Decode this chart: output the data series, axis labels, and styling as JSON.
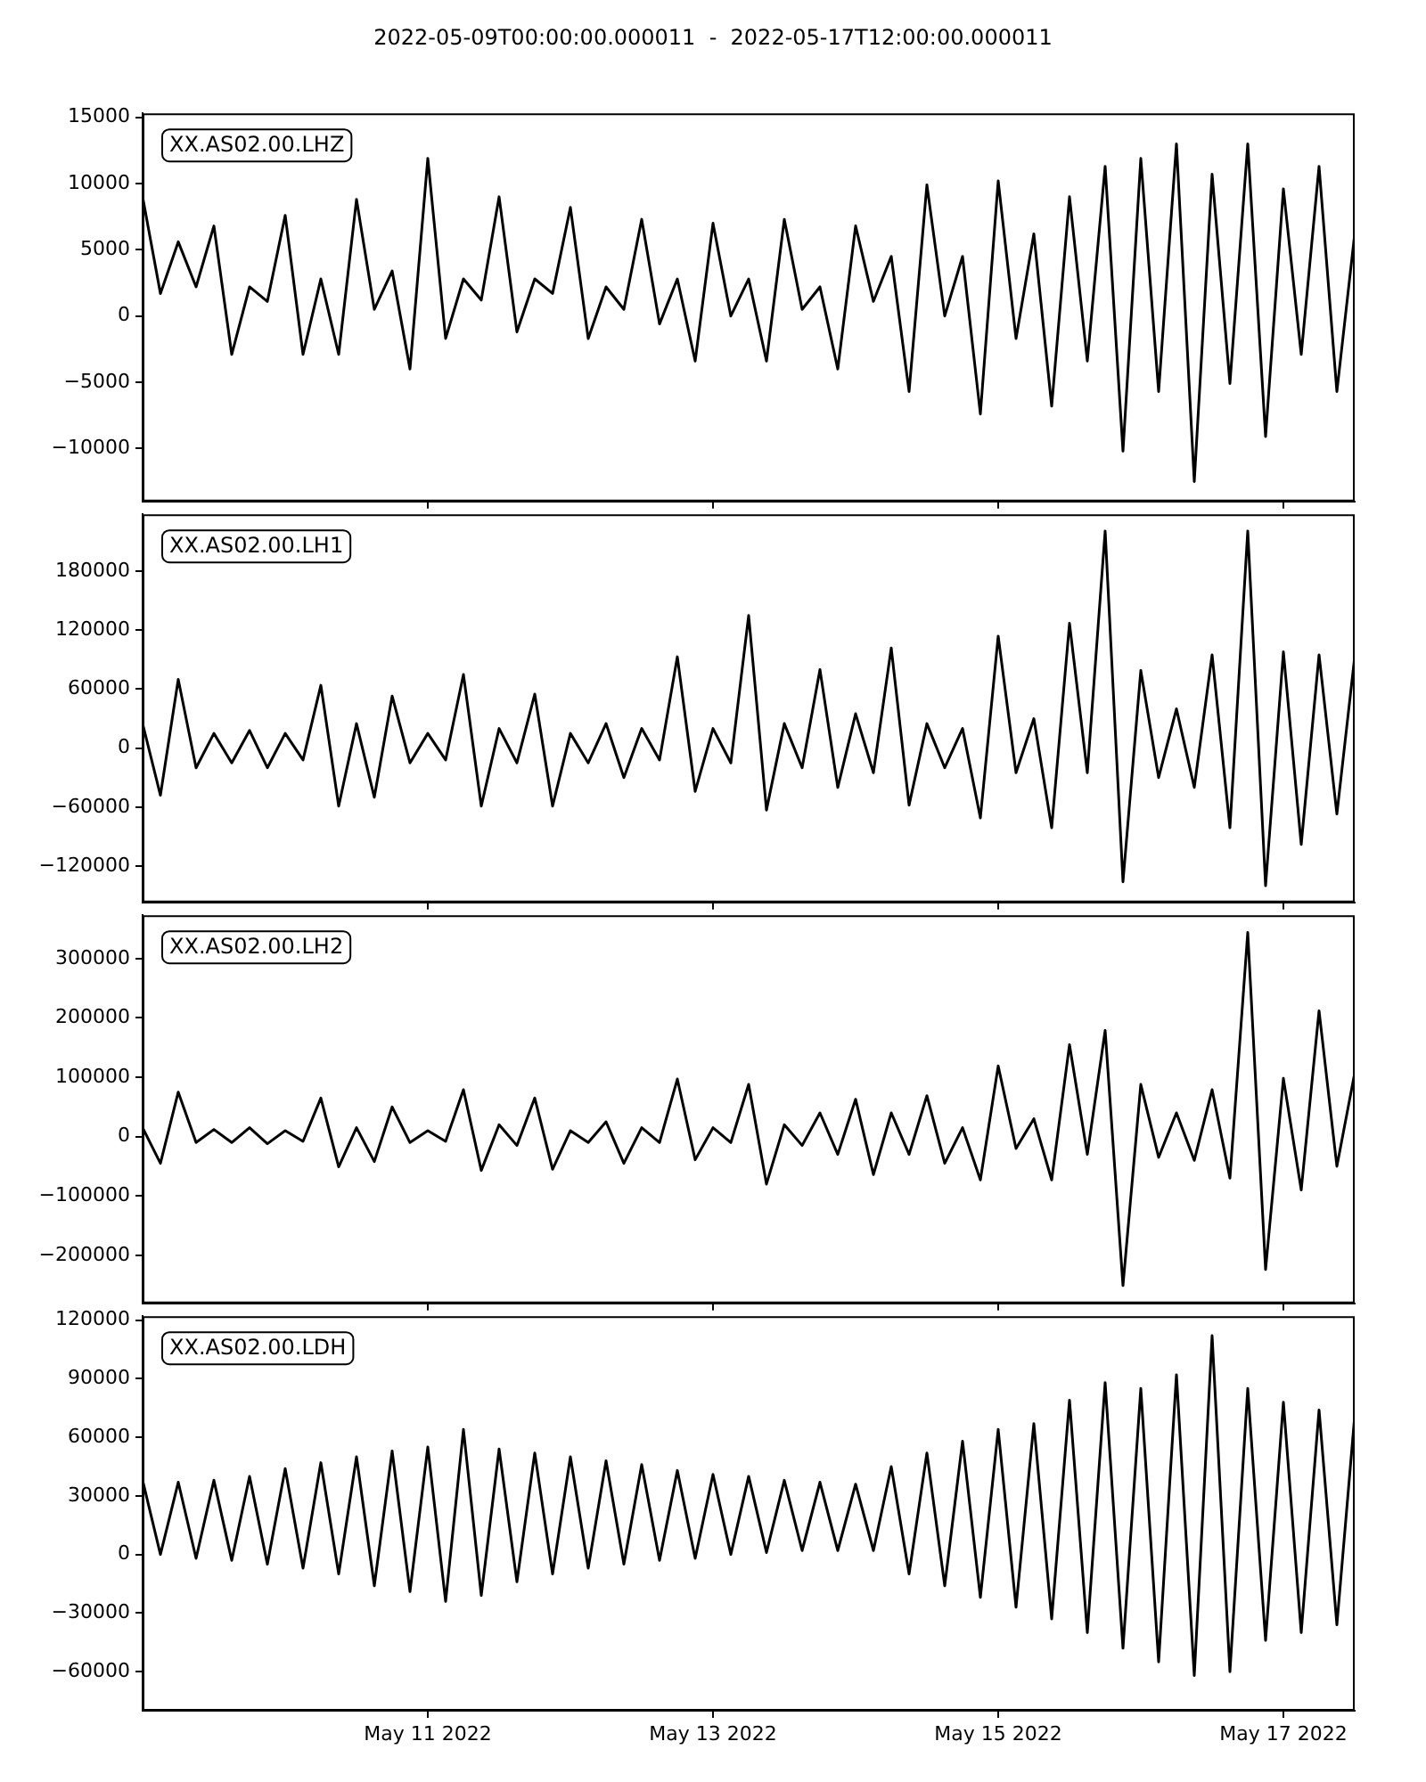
{
  "chart_data": [
    {
      "type": "line",
      "title": "2022-05-09T00:00:00.000011  -  2022-05-17T12:00:00.000011",
      "annotations": [
        "XX.AS02.00.LHZ"
      ],
      "color": "#000000",
      "tick_labels": "y",
      "grid": false,
      "legend": false,
      "xlim": [
        "2022-05-09T00:00",
        "2022-05-17T12:00"
      ],
      "xticks": [
        {
          "value": "2022-05-11",
          "label": null
        },
        {
          "value": "2022-05-13",
          "label": null
        },
        {
          "value": "2022-05-15",
          "label": null
        },
        {
          "value": "2022-05-17",
          "label": null
        }
      ],
      "ylim": [
        -14000,
        15300
      ],
      "yticks": [
        {
          "value": -10000,
          "label": "−10000"
        },
        {
          "value": -5000,
          "label": "−5000"
        },
        0,
        5000,
        10000,
        15000
      ],
      "x": [
        "2022-05-09T00:00",
        "2022-05-09T03:00",
        "2022-05-09T06:00",
        "2022-05-09T09:00",
        "2022-05-09T12:00",
        "2022-05-09T15:00",
        "2022-05-09T18:00",
        "2022-05-09T21:00",
        "2022-05-10T00:00",
        "2022-05-10T03:00",
        "2022-05-10T06:00",
        "2022-05-10T09:00",
        "2022-05-10T12:00",
        "2022-05-10T15:00",
        "2022-05-10T18:00",
        "2022-05-10T21:00",
        "2022-05-11T00:00",
        "2022-05-11T03:00",
        "2022-05-11T06:00",
        "2022-05-11T09:00",
        "2022-05-11T12:00",
        "2022-05-11T15:00",
        "2022-05-11T18:00",
        "2022-05-11T21:00",
        "2022-05-12T00:00",
        "2022-05-12T03:00",
        "2022-05-12T06:00",
        "2022-05-12T09:00",
        "2022-05-12T12:00",
        "2022-05-12T15:00",
        "2022-05-12T18:00",
        "2022-05-12T21:00",
        "2022-05-13T00:00",
        "2022-05-13T03:00",
        "2022-05-13T06:00",
        "2022-05-13T09:00",
        "2022-05-13T12:00",
        "2022-05-13T15:00",
        "2022-05-13T18:00",
        "2022-05-13T21:00",
        "2022-05-14T00:00",
        "2022-05-14T03:00",
        "2022-05-14T06:00",
        "2022-05-14T09:00",
        "2022-05-14T12:00",
        "2022-05-14T15:00",
        "2022-05-14T18:00",
        "2022-05-14T21:00",
        "2022-05-15T00:00",
        "2022-05-15T03:00",
        "2022-05-15T06:00",
        "2022-05-15T09:00",
        "2022-05-15T12:00",
        "2022-05-15T15:00",
        "2022-05-15T18:00",
        "2022-05-15T21:00",
        "2022-05-16T00:00",
        "2022-05-16T03:00",
        "2022-05-16T06:00",
        "2022-05-16T09:00",
        "2022-05-16T12:00",
        "2022-05-16T15:00",
        "2022-05-16T18:00",
        "2022-05-16T21:00",
        "2022-05-17T00:00",
        "2022-05-17T03:00",
        "2022-05-17T06:00",
        "2022-05-17T09:00",
        "2022-05-17T12:00"
      ],
      "values": [
        9000,
        1700,
        5600,
        2200,
        6800,
        -2900,
        2200,
        1100,
        7600,
        -2900,
        2800,
        -2900,
        8800,
        500,
        3400,
        -4000,
        11900,
        -1700,
        2800,
        1200,
        9000,
        -1200,
        2800,
        1700,
        8200,
        -1700,
        2200,
        500,
        7300,
        -600,
        2800,
        -3400,
        7000,
        0,
        2800,
        -3400,
        7300,
        500,
        2200,
        -4000,
        6800,
        1100,
        4500,
        -5700,
        9900,
        0,
        4500,
        -7400,
        10200,
        -1700,
        6200,
        -6800,
        9000,
        -3400,
        11300,
        -10200,
        11900,
        -5700,
        13000,
        -12500,
        10700,
        -5100,
        13000,
        -9100,
        9600,
        -2900,
        11300,
        -5700,
        6200
      ]
    },
    {
      "type": "line",
      "annotations": [
        "XX.AS02.00.LH1"
      ],
      "color": "#000000",
      "tick_labels": "y",
      "grid": false,
      "legend": false,
      "xlim": [
        "2022-05-09T00:00",
        "2022-05-17T12:00"
      ],
      "xticks": [
        {
          "value": "2022-05-11",
          "label": null
        },
        {
          "value": "2022-05-13",
          "label": null
        },
        {
          "value": "2022-05-15",
          "label": null
        },
        {
          "value": "2022-05-17",
          "label": null
        }
      ],
      "ylim": [
        -157000,
        238000
      ],
      "yticks": [
        {
          "value": -120000,
          "label": "−120000"
        },
        {
          "value": -60000,
          "label": "−60000"
        },
        0,
        60000,
        120000,
        180000
      ],
      "x": [
        "2022-05-09T00:00",
        "2022-05-09T03:00",
        "2022-05-09T06:00",
        "2022-05-09T09:00",
        "2022-05-09T12:00",
        "2022-05-09T15:00",
        "2022-05-09T18:00",
        "2022-05-09T21:00",
        "2022-05-10T00:00",
        "2022-05-10T03:00",
        "2022-05-10T06:00",
        "2022-05-10T09:00",
        "2022-05-10T12:00",
        "2022-05-10T15:00",
        "2022-05-10T18:00",
        "2022-05-10T21:00",
        "2022-05-11T00:00",
        "2022-05-11T03:00",
        "2022-05-11T06:00",
        "2022-05-11T09:00",
        "2022-05-11T12:00",
        "2022-05-11T15:00",
        "2022-05-11T18:00",
        "2022-05-11T21:00",
        "2022-05-12T00:00",
        "2022-05-12T03:00",
        "2022-05-12T06:00",
        "2022-05-12T09:00",
        "2022-05-12T12:00",
        "2022-05-12T15:00",
        "2022-05-12T18:00",
        "2022-05-12T21:00",
        "2022-05-13T00:00",
        "2022-05-13T03:00",
        "2022-05-13T06:00",
        "2022-05-13T09:00",
        "2022-05-13T12:00",
        "2022-05-13T15:00",
        "2022-05-13T18:00",
        "2022-05-13T21:00",
        "2022-05-14T00:00",
        "2022-05-14T03:00",
        "2022-05-14T06:00",
        "2022-05-14T09:00",
        "2022-05-14T12:00",
        "2022-05-14T15:00",
        "2022-05-14T18:00",
        "2022-05-14T21:00",
        "2022-05-15T00:00",
        "2022-05-15T03:00",
        "2022-05-15T06:00",
        "2022-05-15T09:00",
        "2022-05-15T12:00",
        "2022-05-15T15:00",
        "2022-05-15T18:00",
        "2022-05-15T21:00",
        "2022-05-16T00:00",
        "2022-05-16T03:00",
        "2022-05-16T06:00",
        "2022-05-16T09:00",
        "2022-05-16T12:00",
        "2022-05-16T15:00",
        "2022-05-16T18:00",
        "2022-05-16T21:00",
        "2022-05-17T00:00",
        "2022-05-17T03:00",
        "2022-05-17T06:00",
        "2022-05-17T09:00",
        "2022-05-17T12:00"
      ],
      "values": [
        25000,
        -48000,
        70000,
        -20000,
        15000,
        -15000,
        18000,
        -20000,
        15000,
        -12000,
        64000,
        -59000,
        25000,
        -50000,
        53000,
        -15000,
        15000,
        -12000,
        75000,
        -59000,
        20000,
        -15000,
        55000,
        -59000,
        15000,
        -15000,
        25000,
        -30000,
        20000,
        -12000,
        93000,
        -44000,
        20000,
        -15000,
        135000,
        -63000,
        25000,
        -20000,
        80000,
        -40000,
        35000,
        -25000,
        102000,
        -58000,
        25000,
        -20000,
        20000,
        -71000,
        114000,
        -25000,
        30000,
        -81000,
        127000,
        -25000,
        221000,
        -136000,
        79000,
        -30000,
        40000,
        -40000,
        95000,
        -81000,
        221000,
        -140000,
        98000,
        -98000,
        95000,
        -67000,
        93000
      ]
    },
    {
      "type": "line",
      "annotations": [
        "XX.AS02.00.LH2"
      ],
      "color": "#000000",
      "tick_labels": "y",
      "grid": false,
      "legend": false,
      "xlim": [
        "2022-05-09T00:00",
        "2022-05-17T12:00"
      ],
      "xticks": [
        {
          "value": "2022-05-11",
          "label": null
        },
        {
          "value": "2022-05-13",
          "label": null
        },
        {
          "value": "2022-05-15",
          "label": null
        },
        {
          "value": "2022-05-17",
          "label": null
        }
      ],
      "ylim": [
        -281000,
        373000
      ],
      "yticks": [
        {
          "value": -200000,
          "label": "−200000"
        },
        {
          "value": -100000,
          "label": "−100000"
        },
        0,
        100000,
        200000,
        300000
      ],
      "x": [
        "2022-05-09T00:00",
        "2022-05-09T03:00",
        "2022-05-09T06:00",
        "2022-05-09T09:00",
        "2022-05-09T12:00",
        "2022-05-09T15:00",
        "2022-05-09T18:00",
        "2022-05-09T21:00",
        "2022-05-10T00:00",
        "2022-05-10T03:00",
        "2022-05-10T06:00",
        "2022-05-10T09:00",
        "2022-05-10T12:00",
        "2022-05-10T15:00",
        "2022-05-10T18:00",
        "2022-05-10T21:00",
        "2022-05-11T00:00",
        "2022-05-11T03:00",
        "2022-05-11T06:00",
        "2022-05-11T09:00",
        "2022-05-11T12:00",
        "2022-05-11T15:00",
        "2022-05-11T18:00",
        "2022-05-11T21:00",
        "2022-05-12T00:00",
        "2022-05-12T03:00",
        "2022-05-12T06:00",
        "2022-05-12T09:00",
        "2022-05-12T12:00",
        "2022-05-12T15:00",
        "2022-05-12T18:00",
        "2022-05-12T21:00",
        "2022-05-13T00:00",
        "2022-05-13T03:00",
        "2022-05-13T06:00",
        "2022-05-13T09:00",
        "2022-05-13T12:00",
        "2022-05-13T15:00",
        "2022-05-13T18:00",
        "2022-05-13T21:00",
        "2022-05-14T00:00",
        "2022-05-14T03:00",
        "2022-05-14T06:00",
        "2022-05-14T09:00",
        "2022-05-14T12:00",
        "2022-05-14T15:00",
        "2022-05-14T18:00",
        "2022-05-14T21:00",
        "2022-05-15T00:00",
        "2022-05-15T03:00",
        "2022-05-15T06:00",
        "2022-05-15T09:00",
        "2022-05-15T12:00",
        "2022-05-15T15:00",
        "2022-05-15T18:00",
        "2022-05-15T21:00",
        "2022-05-16T00:00",
        "2022-05-16T03:00",
        "2022-05-16T06:00",
        "2022-05-16T09:00",
        "2022-05-16T12:00",
        "2022-05-16T15:00",
        "2022-05-16T18:00",
        "2022-05-16T21:00",
        "2022-05-17T00:00",
        "2022-05-17T03:00",
        "2022-05-17T06:00",
        "2022-05-17T09:00",
        "2022-05-17T12:00"
      ],
      "values": [
        15000,
        -45000,
        75000,
        -10000,
        12000,
        -10000,
        15000,
        -12000,
        10000,
        -8000,
        65000,
        -51000,
        15000,
        -42000,
        50000,
        -10000,
        10000,
        -8000,
        79000,
        -57000,
        20000,
        -15000,
        65000,
        -55000,
        10000,
        -10000,
        25000,
        -45000,
        15000,
        -10000,
        97000,
        -39000,
        15000,
        -10000,
        88000,
        -80000,
        20000,
        -15000,
        40000,
        -30000,
        63000,
        -64000,
        40000,
        -30000,
        69000,
        -45000,
        15000,
        -73000,
        119000,
        -20000,
        30000,
        -73000,
        155000,
        -30000,
        179000,
        -251000,
        88000,
        -35000,
        40000,
        -40000,
        79000,
        -70000,
        344000,
        -224000,
        98000,
        -90000,
        212000,
        -50000,
        107000
      ]
    },
    {
      "type": "line",
      "annotations": [
        "XX.AS02.00.LDH"
      ],
      "color": "#000000",
      "grid": false,
      "legend": false,
      "xlim": [
        "2022-05-09T00:00",
        "2022-05-17T12:00"
      ],
      "xticks": [
        {
          "value": "2022-05-11",
          "label": "May 11 2022"
        },
        {
          "value": "2022-05-13",
          "label": "May 13 2022"
        },
        {
          "value": "2022-05-15",
          "label": "May 15 2022"
        },
        {
          "value": "2022-05-17",
          "label": "May 17 2022"
        }
      ],
      "ylim": [
        -80000,
        122000
      ],
      "yticks": [
        {
          "value": -60000,
          "label": "−60000"
        },
        {
          "value": -30000,
          "label": "−30000"
        },
        0,
        30000,
        60000,
        90000,
        120000
      ],
      "x": [
        "2022-05-09T00:00",
        "2022-05-09T03:00",
        "2022-05-09T06:00",
        "2022-05-09T09:00",
        "2022-05-09T12:00",
        "2022-05-09T15:00",
        "2022-05-09T18:00",
        "2022-05-09T21:00",
        "2022-05-10T00:00",
        "2022-05-10T03:00",
        "2022-05-10T06:00",
        "2022-05-10T09:00",
        "2022-05-10T12:00",
        "2022-05-10T15:00",
        "2022-05-10T18:00",
        "2022-05-10T21:00",
        "2022-05-11T00:00",
        "2022-05-11T03:00",
        "2022-05-11T06:00",
        "2022-05-11T09:00",
        "2022-05-11T12:00",
        "2022-05-11T15:00",
        "2022-05-11T18:00",
        "2022-05-11T21:00",
        "2022-05-12T00:00",
        "2022-05-12T03:00",
        "2022-05-12T06:00",
        "2022-05-12T09:00",
        "2022-05-12T12:00",
        "2022-05-12T15:00",
        "2022-05-12T18:00",
        "2022-05-12T21:00",
        "2022-05-13T00:00",
        "2022-05-13T03:00",
        "2022-05-13T06:00",
        "2022-05-13T09:00",
        "2022-05-13T12:00",
        "2022-05-13T15:00",
        "2022-05-13T18:00",
        "2022-05-13T21:00",
        "2022-05-14T00:00",
        "2022-05-14T03:00",
        "2022-05-14T06:00",
        "2022-05-14T09:00",
        "2022-05-14T12:00",
        "2022-05-14T15:00",
        "2022-05-14T18:00",
        "2022-05-14T21:00",
        "2022-05-15T00:00",
        "2022-05-15T03:00",
        "2022-05-15T06:00",
        "2022-05-15T09:00",
        "2022-05-15T12:00",
        "2022-05-15T15:00",
        "2022-05-15T18:00",
        "2022-05-15T21:00",
        "2022-05-16T00:00",
        "2022-05-16T03:00",
        "2022-05-16T06:00",
        "2022-05-16T09:00",
        "2022-05-16T12:00",
        "2022-05-16T15:00",
        "2022-05-16T18:00",
        "2022-05-16T21:00",
        "2022-05-17T00:00",
        "2022-05-17T03:00",
        "2022-05-17T06:00",
        "2022-05-17T09:00",
        "2022-05-17T12:00"
      ],
      "values": [
        38000,
        0,
        37000,
        -2000,
        38000,
        -3000,
        40000,
        -5000,
        44000,
        -7000,
        47000,
        -10000,
        50000,
        -16000,
        53000,
        -19000,
        55000,
        -24000,
        64000,
        -21000,
        54000,
        -14000,
        52000,
        -10000,
        50000,
        -7000,
        48000,
        -5000,
        46000,
        -3000,
        43000,
        -2000,
        41000,
        0,
        40000,
        1000,
        38000,
        2000,
        37000,
        2000,
        36000,
        2000,
        45000,
        -10000,
        52000,
        -16000,
        58000,
        -22000,
        64000,
        -27000,
        67000,
        -33000,
        79000,
        -40000,
        88000,
        -48000,
        85000,
        -55000,
        92000,
        -62000,
        112000,
        -60000,
        85000,
        -44000,
        78000,
        -40000,
        74000,
        -36000,
        71000
      ]
    }
  ]
}
